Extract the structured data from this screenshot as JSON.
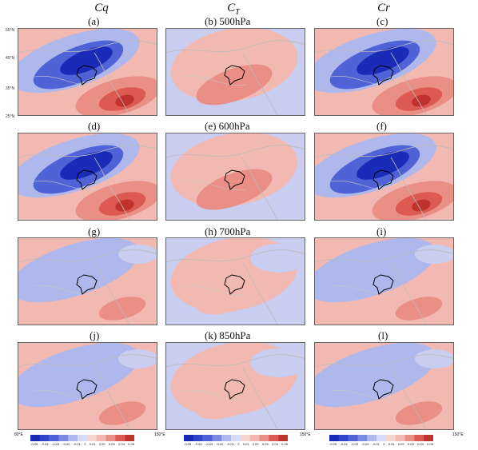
{
  "columns": {
    "left": {
      "main": "Cq",
      "sub": ""
    },
    "middle": {
      "main": "C",
      "sub": "T"
    },
    "right": {
      "main": "Cr",
      "sub": ""
    }
  },
  "rows": [
    {
      "level": "500hPa",
      "labels": [
        "(a)",
        "(b) 500hPa",
        "(c)"
      ]
    },
    {
      "level": "600hPa",
      "labels": [
        "(d)",
        "(e) 600hPa",
        "(f)"
      ]
    },
    {
      "level": "700hPa",
      "labels": [
        "(g)",
        "(h) 700hPa",
        "(i)"
      ]
    },
    {
      "level": "850hPa",
      "labels": [
        "(j)",
        "(k) 850hPa",
        "(l)"
      ]
    }
  ],
  "lat_labels": [
    "55°N",
    "45°N",
    "35°N",
    "25°N"
  ],
  "lon_labels": [
    "80°E",
    "100°E",
    "120°E",
    "140°E",
    "150°E"
  ],
  "colorbar_ticks": [
    "-0.05",
    "-0.04",
    "-0.03",
    "-0.02",
    "-0.01",
    "0",
    "0.01",
    "0.02",
    "0.03",
    "0.04",
    "0.05"
  ],
  "colors": {
    "deep_blue": "#1a2bb8",
    "blue": "#4f63d6",
    "light_blue": "#aeb8ec",
    "pale_blue": "#c9cdf0",
    "pale_red": "#f2b9b2",
    "light_red": "#ea8f86",
    "red": "#dc5a52",
    "deep_red": "#c0332d"
  }
}
